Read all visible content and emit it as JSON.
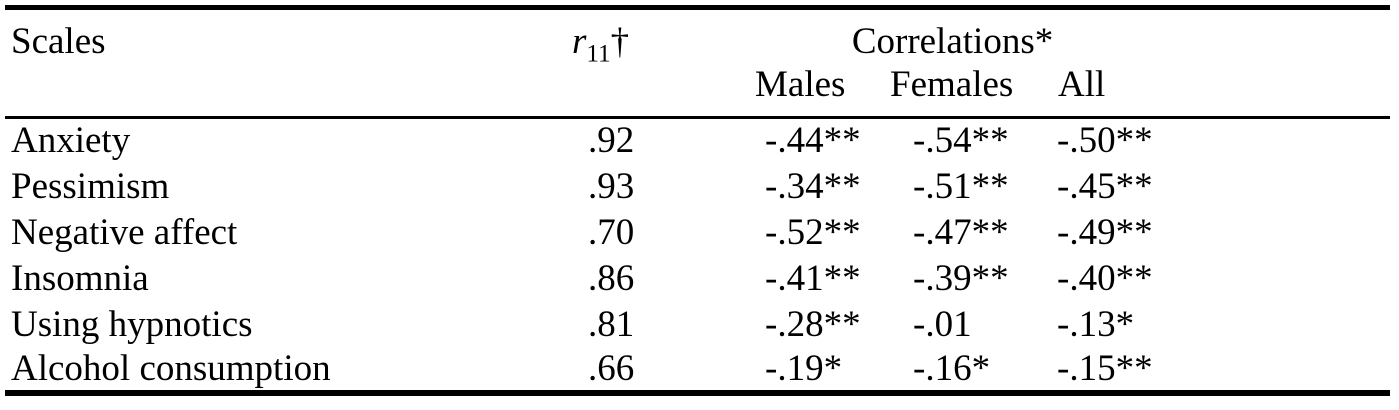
{
  "table": {
    "header": {
      "scales_label": "Scales",
      "r11_symbol": "r",
      "r11_subscript": "11",
      "r11_dagger": "†",
      "correlations_label": "Correlations*",
      "males_label": "Males",
      "females_label": "Females",
      "all_label": "All"
    },
    "rows": [
      {
        "scale": "Anxiety",
        "r11": ".92",
        "males": "-.44**",
        "females": "-.54**",
        "all": "-.50**"
      },
      {
        "scale": "Pessimism",
        "r11": ".93",
        "males": "-.34**",
        "females": "-.51**",
        "all": "-.45**"
      },
      {
        "scale": "Negative affect",
        "r11": ".70",
        "males": "-.52**",
        "females": "-.47**",
        "all": "-.49**"
      },
      {
        "scale": "Insomnia",
        "r11": ".86",
        "males": "-.41**",
        "females": "-.39**",
        "all": "-.40**"
      },
      {
        "scale": "Using hypnotics",
        "r11": ".81",
        "males": "-.28**",
        "females": "-.01",
        "all": "-.13*"
      },
      {
        "scale": "Alcohol consumption",
        "r11": ".66",
        "males": "-.19*",
        "females": "-.16*",
        "all": "-.15**"
      }
    ],
    "colors": {
      "text": "#000000",
      "background": "#ffffff",
      "rule": "#000000"
    }
  }
}
